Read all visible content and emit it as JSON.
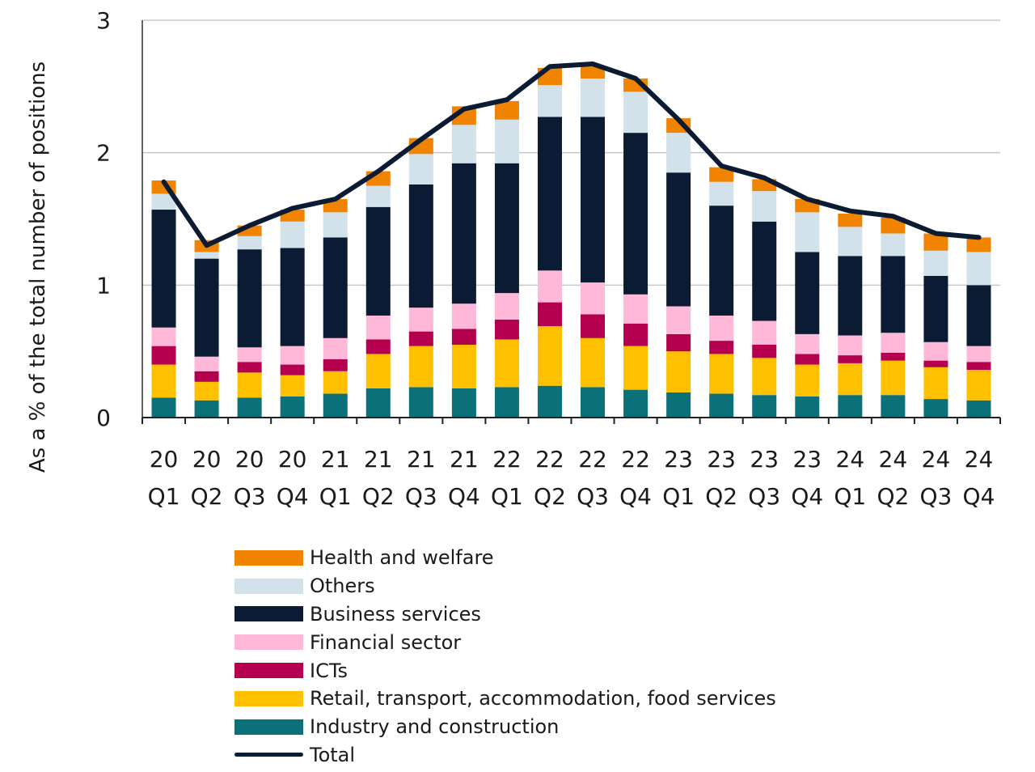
{
  "chart_data": {
    "type": "bar",
    "stacked": true,
    "ylabel": "As a % of the total number of positions",
    "ylim": [
      0,
      3
    ],
    "yticks": [
      "0",
      "1",
      "2",
      "3"
    ],
    "grid": true,
    "legend_position": "bottom",
    "categories": [
      {
        "year": "20",
        "quarter": "Q1"
      },
      {
        "year": "20",
        "quarter": "Q2"
      },
      {
        "year": "20",
        "quarter": "Q3"
      },
      {
        "year": "20",
        "quarter": "Q4"
      },
      {
        "year": "21",
        "quarter": "Q1"
      },
      {
        "year": "21",
        "quarter": "Q2"
      },
      {
        "year": "21",
        "quarter": "Q3"
      },
      {
        "year": "21",
        "quarter": "Q4"
      },
      {
        "year": "22",
        "quarter": "Q1"
      },
      {
        "year": "22",
        "quarter": "Q2"
      },
      {
        "year": "22",
        "quarter": "Q3"
      },
      {
        "year": "22",
        "quarter": "Q4"
      },
      {
        "year": "23",
        "quarter": "Q1"
      },
      {
        "year": "23",
        "quarter": "Q2"
      },
      {
        "year": "23",
        "quarter": "Q3"
      },
      {
        "year": "23",
        "quarter": "Q4"
      },
      {
        "year": "24",
        "quarter": "Q1"
      },
      {
        "year": "24",
        "quarter": "Q2"
      },
      {
        "year": "24",
        "quarter": "Q3"
      },
      {
        "year": "24",
        "quarter": "Q4"
      }
    ],
    "series": [
      {
        "name": "Industry and construction",
        "color": "#0b7077",
        "values": [
          0.15,
          0.13,
          0.15,
          0.16,
          0.18,
          0.22,
          0.23,
          0.22,
          0.23,
          0.24,
          0.23,
          0.21,
          0.19,
          0.18,
          0.17,
          0.16,
          0.17,
          0.17,
          0.14,
          0.13
        ]
      },
      {
        "name": "Retail, transport, accommodation, food services",
        "color": "#ffc000",
        "values": [
          0.25,
          0.14,
          0.19,
          0.16,
          0.17,
          0.26,
          0.31,
          0.33,
          0.36,
          0.45,
          0.37,
          0.33,
          0.31,
          0.3,
          0.28,
          0.24,
          0.24,
          0.26,
          0.24,
          0.23
        ]
      },
      {
        "name": "ICTs",
        "color": "#b5004f",
        "values": [
          0.14,
          0.08,
          0.08,
          0.08,
          0.09,
          0.11,
          0.11,
          0.12,
          0.15,
          0.18,
          0.18,
          0.17,
          0.13,
          0.1,
          0.1,
          0.08,
          0.06,
          0.06,
          0.05,
          0.06
        ]
      },
      {
        "name": "Financial sector",
        "color": "#ffb8d8",
        "values": [
          0.14,
          0.11,
          0.11,
          0.14,
          0.16,
          0.18,
          0.18,
          0.19,
          0.2,
          0.24,
          0.24,
          0.22,
          0.21,
          0.19,
          0.18,
          0.15,
          0.15,
          0.15,
          0.14,
          0.12
        ]
      },
      {
        "name": "Business services",
        "color": "#0b1b33",
        "values": [
          0.89,
          0.74,
          0.74,
          0.74,
          0.76,
          0.82,
          0.93,
          1.06,
          0.98,
          1.16,
          1.25,
          1.22,
          1.01,
          0.83,
          0.75,
          0.62,
          0.6,
          0.58,
          0.5,
          0.46
        ]
      },
      {
        "name": "Others",
        "color": "#d3e1ea",
        "values": [
          0.12,
          0.05,
          0.1,
          0.2,
          0.19,
          0.16,
          0.23,
          0.29,
          0.33,
          0.24,
          0.29,
          0.31,
          0.3,
          0.18,
          0.23,
          0.3,
          0.22,
          0.17,
          0.19,
          0.25
        ]
      },
      {
        "name": "Health and welfare",
        "color": "#f08300",
        "values": [
          0.1,
          0.09,
          0.08,
          0.09,
          0.1,
          0.11,
          0.12,
          0.14,
          0.14,
          0.13,
          0.09,
          0.1,
          0.11,
          0.11,
          0.09,
          0.1,
          0.1,
          0.12,
          0.13,
          0.11
        ]
      }
    ],
    "line": {
      "name": "Total",
      "color": "#0b1b33",
      "values": [
        1.78,
        1.3,
        1.45,
        1.58,
        1.65,
        1.86,
        2.1,
        2.33,
        2.4,
        2.65,
        2.67,
        2.56,
        2.25,
        1.9,
        1.81,
        1.65,
        1.56,
        1.52,
        1.39,
        1.36
      ]
    },
    "legend_order": [
      "Health and welfare",
      "Others",
      "Business services",
      "Financial sector",
      "ICTs",
      "Retail, transport, accommodation, food services",
      "Industry and construction",
      "Total"
    ]
  }
}
